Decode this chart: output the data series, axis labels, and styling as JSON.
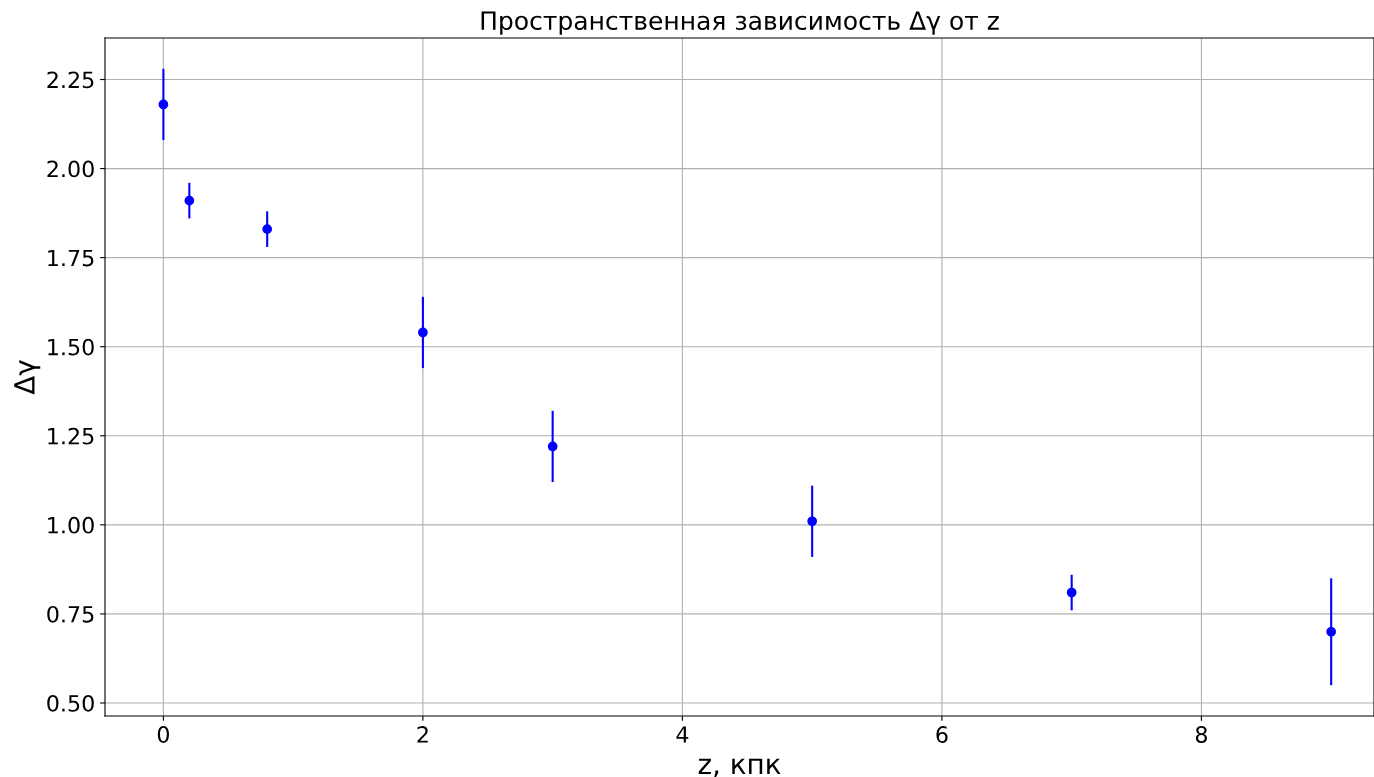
{
  "chart_data": {
    "type": "scatter",
    "title": "Пространственная зависимость Δγ от z",
    "xlabel": "z, кпк",
    "ylabel": "Δγ",
    "x": [
      0,
      0.2,
      0.8,
      2,
      3,
      5,
      7,
      9
    ],
    "values": [
      2.18,
      1.91,
      1.83,
      1.54,
      1.22,
      1.01,
      0.81,
      0.7
    ],
    "errors": [
      0.1,
      0.05,
      0.05,
      0.1,
      0.1,
      0.1,
      0.05,
      0.15
    ],
    "color": "#0000ff",
    "marker": "circle",
    "xlim": [
      -0.45,
      9.33
    ],
    "ylim": [
      0.4635,
      2.3665
    ],
    "xticks": [
      0,
      2,
      4,
      6,
      8
    ],
    "yticks": [
      {
        "value": 0.5,
        "label": "0.50"
      },
      {
        "value": 0.75,
        "label": "0.75"
      },
      {
        "value": 1.0,
        "label": "1.00"
      },
      {
        "value": 1.25,
        "label": "1.25"
      },
      {
        "value": 1.5,
        "label": "1.50"
      },
      {
        "value": 1.75,
        "label": "1.75"
      },
      {
        "value": 2.0,
        "label": "2.00"
      },
      {
        "value": 2.25,
        "label": "2.25"
      }
    ],
    "grid": true
  }
}
